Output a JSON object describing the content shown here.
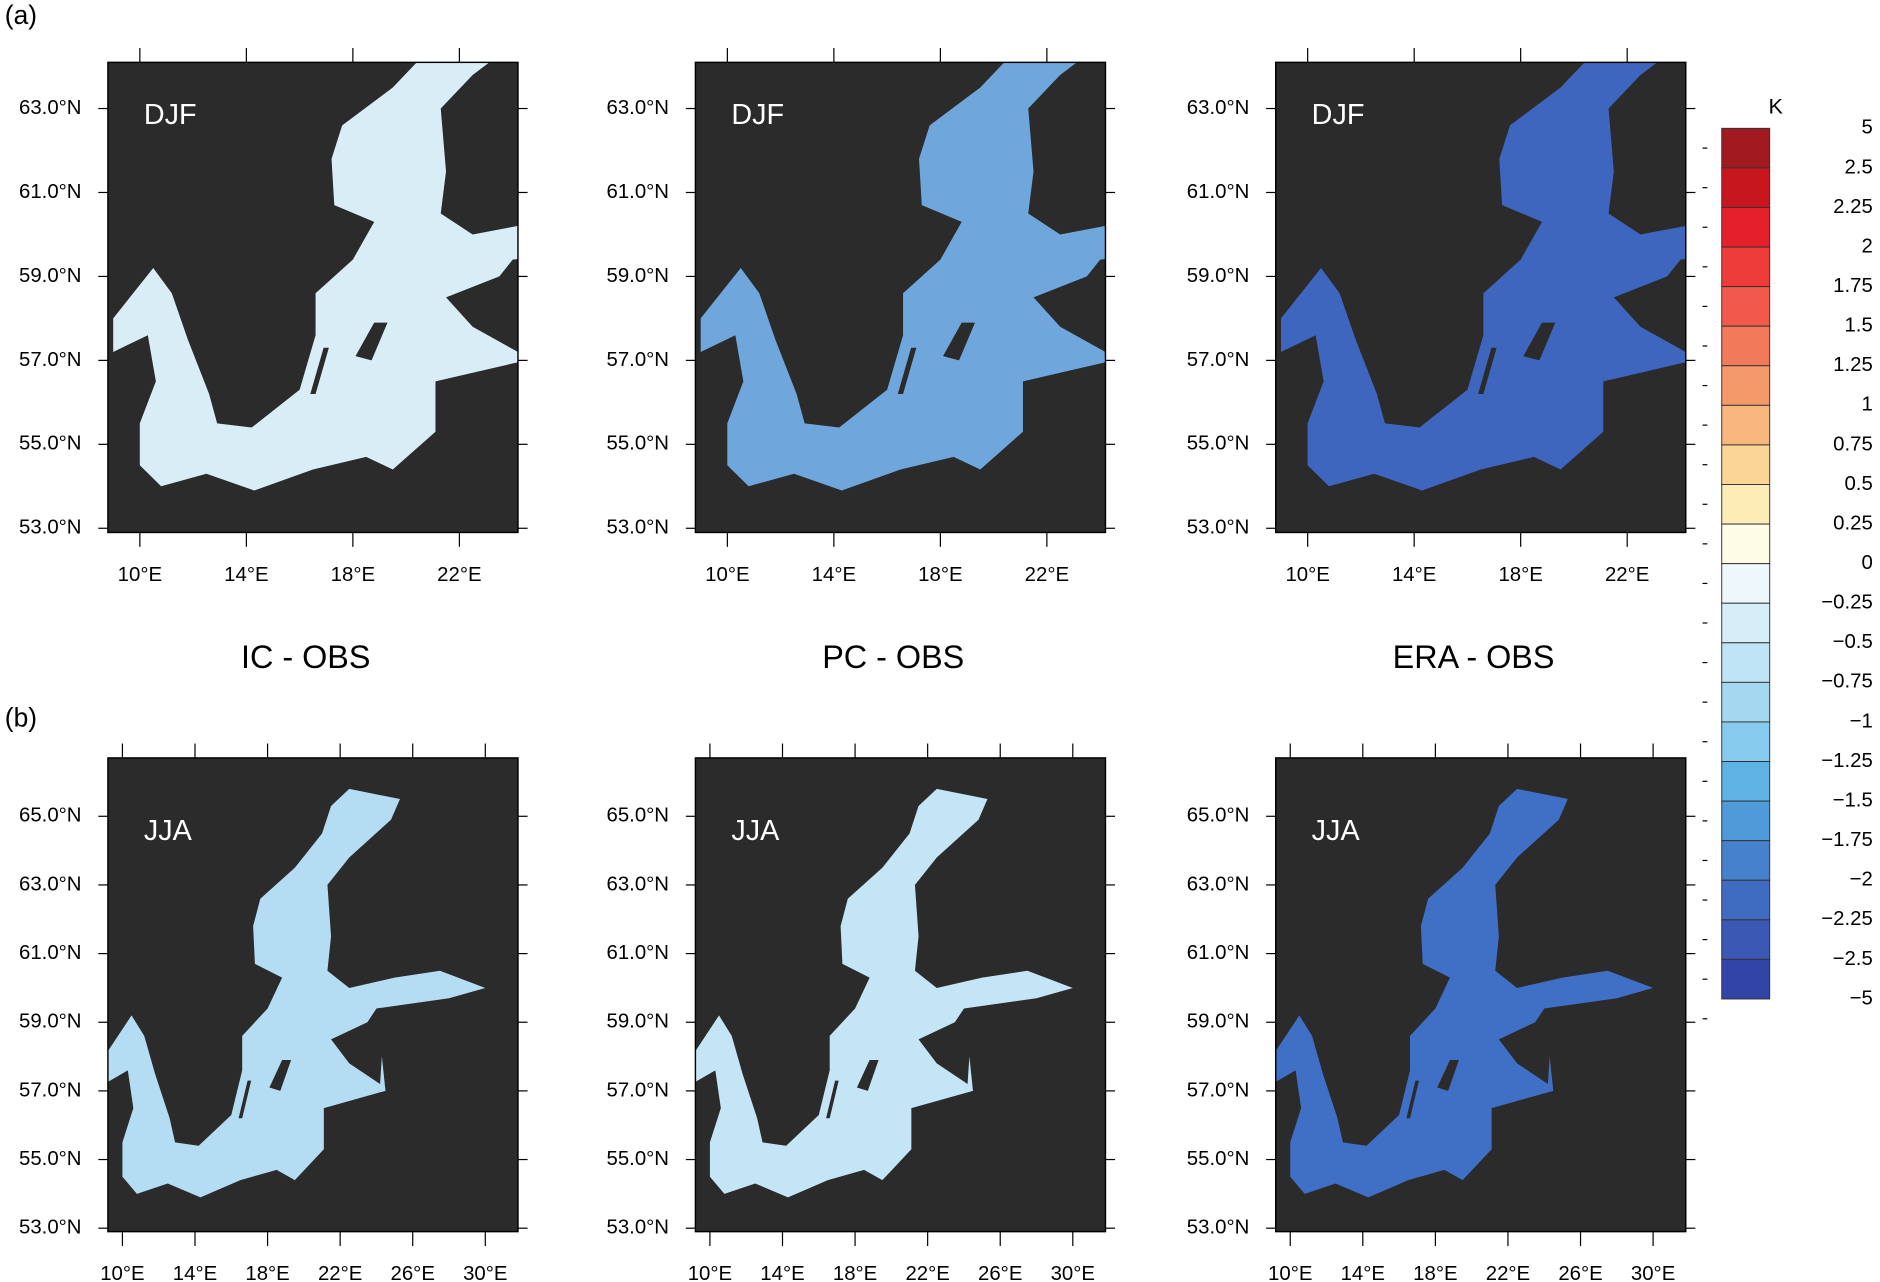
{
  "figure": {
    "row_labels": [
      "(a)",
      "(b)"
    ],
    "column_titles": [
      "IC - OBS",
      "PC - OBS",
      "ERA - OBS"
    ],
    "rows": [
      {
        "season": "DJF",
        "lonlim": [
          8.8,
          24.2
        ],
        "latlim": [
          52.9,
          64.1
        ],
        "lonticks": [
          {
            "value": 10,
            "label": "10°E"
          },
          {
            "value": 14,
            "label": "14°E"
          },
          {
            "value": 18,
            "label": "18°E"
          },
          {
            "value": 22,
            "label": "22°E"
          }
        ],
        "latticks": [
          {
            "value": 63,
            "label": "63.0°N"
          },
          {
            "value": 61,
            "label": "61.0°N"
          },
          {
            "value": 59,
            "label": "59.0°N"
          },
          {
            "value": 57,
            "label": "57.0°N"
          },
          {
            "value": 55,
            "label": "55.0°N"
          },
          {
            "value": 53,
            "label": "53.0°N"
          }
        ],
        "panels": [
          {
            "fill": "#d9edf7"
          },
          {
            "fill": "#6fa7dd"
          },
          {
            "fill": "#3f66be"
          }
        ]
      },
      {
        "season": "JJA",
        "lonlim": [
          9.2,
          31.8
        ],
        "latlim": [
          52.9,
          66.7
        ],
        "lonticks": [
          {
            "value": 10,
            "label": "10°E"
          },
          {
            "value": 14,
            "label": "14°E"
          },
          {
            "value": 18,
            "label": "18°E"
          },
          {
            "value": 22,
            "label": "22°E"
          },
          {
            "value": 26,
            "label": "26°E"
          },
          {
            "value": 30,
            "label": "30°E"
          }
        ],
        "latticks": [
          {
            "value": 65,
            "label": "65.0°N"
          },
          {
            "value": 63,
            "label": "63.0°N"
          },
          {
            "value": 61,
            "label": "61.0°N"
          },
          {
            "value": 59,
            "label": "59.0°N"
          },
          {
            "value": 57,
            "label": "57.0°N"
          },
          {
            "value": 55,
            "label": "55.0°N"
          },
          {
            "value": 53,
            "label": "53.0°N"
          }
        ],
        "panels": [
          {
            "fill": "#b4dcf3"
          },
          {
            "fill": "#c4e5f6"
          },
          {
            "fill": "#4070c5"
          }
        ]
      }
    ],
    "colorbar": {
      "unit": "K",
      "levels": [
        5,
        2.5,
        2.25,
        2,
        1.75,
        1.5,
        1.25,
        1,
        0.75,
        0.5,
        0.25,
        0,
        {
          "value": -0.25,
          "label": "−0.25"
        },
        {
          "value": -0.5,
          "label": "−0.5"
        },
        {
          "value": -0.75,
          "label": "−0.75"
        },
        {
          "value": -1,
          "label": "−1"
        },
        {
          "value": -1.25,
          "label": "−1.25"
        },
        {
          "value": -1.5,
          "label": "−1.5"
        },
        {
          "value": -1.75,
          "label": "−1.75"
        },
        {
          "value": -2,
          "label": "−2"
        },
        {
          "value": -2.25,
          "label": "−2.25"
        },
        {
          "value": -2.5,
          "label": "−2.5"
        },
        {
          "value": -5,
          "label": "−5"
        }
      ],
      "colors": [
        "#a11a1f",
        "#c8161e",
        "#e4202a",
        "#ee3c3a",
        "#f15a4a",
        "#f27a5a",
        "#f4996a",
        "#f7b77e",
        "#fad596",
        "#fcecb6",
        "#fefbe6",
        "#eef7fb",
        "#d6eef8",
        "#bfe4f5",
        "#a4d8f1",
        "#86cbee",
        "#5fb3e4",
        "#4f9ad8",
        "#4682cc",
        "#3f6cc0",
        "#3a58b4",
        "#3244a6"
      ]
    }
  }
}
